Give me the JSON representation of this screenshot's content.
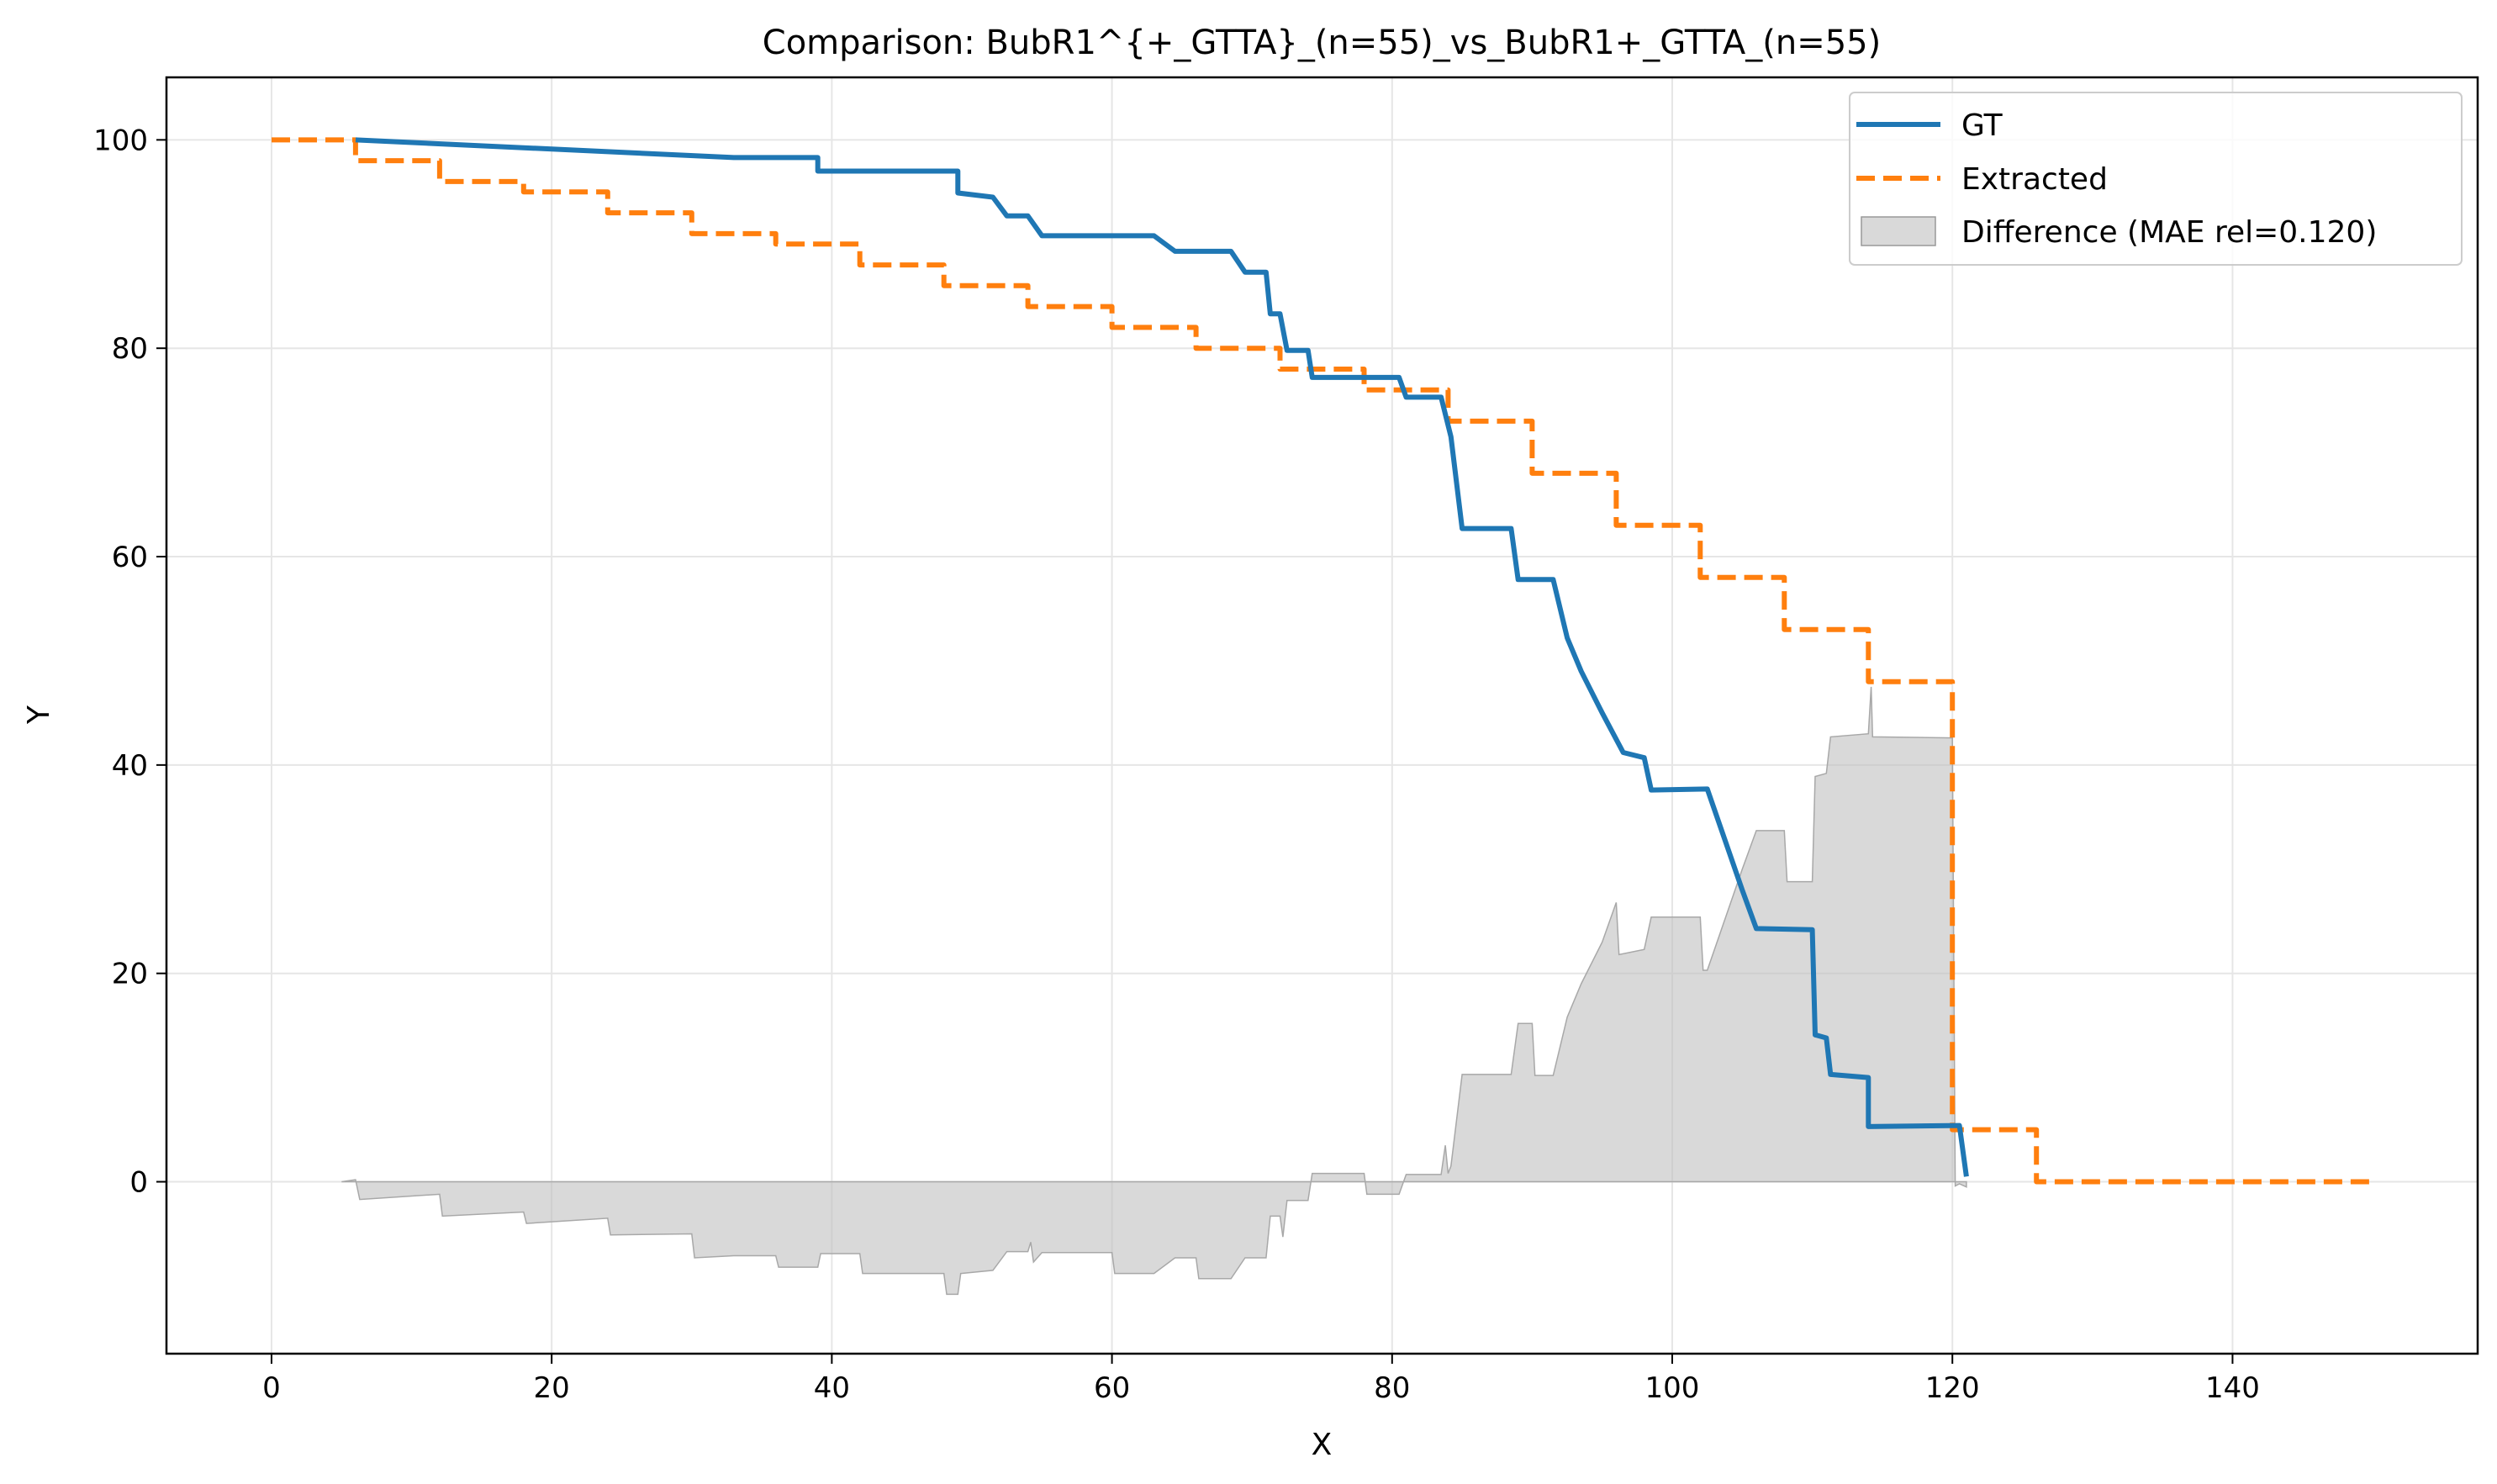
{
  "chart_data": {
    "type": "line",
    "title": "Comparison: BubR1^{+_GTTA}_(n=55)_vs_BubR1+_GTTA_(n=55)",
    "xlabel": "X",
    "ylabel": "Y",
    "xlim": [
      -7.5,
      157.5
    ],
    "ylim": [
      -16.5,
      106
    ],
    "xticks": [
      0,
      20,
      40,
      60,
      80,
      100,
      120,
      140
    ],
    "yticks": [
      0,
      20,
      40,
      60,
      80,
      100
    ],
    "grid": true,
    "legend_position": "top-right",
    "series": [
      {
        "name": "GT",
        "color": "#1f77b4",
        "style": "solid",
        "points": [
          [
            6,
            100
          ],
          [
            33,
            98.3
          ],
          [
            39,
            98.3
          ],
          [
            39,
            97
          ],
          [
            49,
            97
          ],
          [
            49,
            94.9
          ],
          [
            51.5,
            94.5
          ],
          [
            52.5,
            92.7
          ],
          [
            54,
            92.7
          ],
          [
            55,
            90.8
          ],
          [
            63,
            90.8
          ],
          [
            64.5,
            89.3
          ],
          [
            68.5,
            89.3
          ],
          [
            69.5,
            87.3
          ],
          [
            71,
            87.3
          ],
          [
            71.3,
            83.3
          ],
          [
            72,
            83.3
          ],
          [
            72.5,
            79.8
          ],
          [
            74,
            79.8
          ],
          [
            74.3,
            77.2
          ],
          [
            80.5,
            77.2
          ],
          [
            81,
            75.3
          ],
          [
            83.5,
            75.3
          ],
          [
            84.2,
            71.5
          ],
          [
            85,
            62.7
          ],
          [
            88.5,
            62.7
          ],
          [
            89,
            57.8
          ],
          [
            91.5,
            57.8
          ],
          [
            92.5,
            52.2
          ],
          [
            93.5,
            49
          ],
          [
            95,
            45
          ],
          [
            96.5,
            41.2
          ],
          [
            98,
            40.7
          ],
          [
            98.5,
            37.6
          ],
          [
            102.5,
            37.7
          ],
          [
            105,
            28
          ],
          [
            106,
            24.3
          ],
          [
            110,
            24.2
          ],
          [
            110.2,
            14.1
          ],
          [
            111,
            13.8
          ],
          [
            111.3,
            10.3
          ],
          [
            114,
            10
          ],
          [
            114,
            5.3
          ],
          [
            120.5,
            5.4
          ],
          [
            121,
            0.5
          ]
        ]
      },
      {
        "name": "Extracted",
        "color": "#ff7f0e",
        "style": "dashed",
        "points": [
          [
            0,
            100
          ],
          [
            6,
            100
          ],
          [
            6,
            98
          ],
          [
            12,
            98
          ],
          [
            12,
            96
          ],
          [
            18,
            96
          ],
          [
            18,
            95
          ],
          [
            24,
            95
          ],
          [
            24,
            93
          ],
          [
            30,
            93
          ],
          [
            30,
            91
          ],
          [
            36,
            91
          ],
          [
            36,
            90
          ],
          [
            42,
            90
          ],
          [
            42,
            88
          ],
          [
            48,
            88
          ],
          [
            48,
            86
          ],
          [
            54,
            86
          ],
          [
            54,
            84
          ],
          [
            60,
            84
          ],
          [
            60,
            82
          ],
          [
            66,
            82
          ],
          [
            66,
            80
          ],
          [
            72,
            80
          ],
          [
            72,
            78
          ],
          [
            78,
            78
          ],
          [
            78,
            76
          ],
          [
            84,
            76
          ],
          [
            84,
            73
          ],
          [
            90,
            73
          ],
          [
            90,
            68
          ],
          [
            96,
            68
          ],
          [
            96,
            63
          ],
          [
            102,
            63
          ],
          [
            102,
            58
          ],
          [
            108,
            58
          ],
          [
            108,
            53
          ],
          [
            114,
            53
          ],
          [
            114,
            48
          ],
          [
            120,
            48
          ],
          [
            120,
            5
          ],
          [
            126,
            5
          ],
          [
            126,
            0
          ],
          [
            150,
            0
          ]
        ]
      }
    ],
    "fill": {
      "name": "Difference (MAE rel=0.120)",
      "color": "#bfbfbf",
      "points": [
        [
          5,
          0
        ],
        [
          6,
          0.2
        ],
        [
          6.3,
          -1.7
        ],
        [
          12,
          -1.2
        ],
        [
          12.2,
          -3.3
        ],
        [
          18,
          -2.9
        ],
        [
          18.2,
          -4
        ],
        [
          24,
          -3.5
        ],
        [
          24.2,
          -5.1
        ],
        [
          30,
          -5
        ],
        [
          30.2,
          -7.3
        ],
        [
          33,
          -7.1
        ],
        [
          36,
          -7.1
        ],
        [
          36.2,
          -8.2
        ],
        [
          39,
          -8.2
        ],
        [
          39.2,
          -6.9
        ],
        [
          42,
          -6.9
        ],
        [
          42.2,
          -8.8
        ],
        [
          48,
          -8.8
        ],
        [
          48.2,
          -10.8
        ],
        [
          49,
          -10.8
        ],
        [
          49.2,
          -8.8
        ],
        [
          51.5,
          -8.5
        ],
        [
          52.5,
          -6.7
        ],
        [
          54,
          -6.7
        ],
        [
          54.2,
          -5.8
        ],
        [
          54.4,
          -7.7
        ],
        [
          55,
          -6.8
        ],
        [
          60,
          -6.8
        ],
        [
          60.2,
          -8.8
        ],
        [
          63,
          -8.8
        ],
        [
          64.5,
          -7.3
        ],
        [
          66,
          -7.3
        ],
        [
          66.2,
          -9.3
        ],
        [
          68.5,
          -9.3
        ],
        [
          69.5,
          -7.3
        ],
        [
          71,
          -7.3
        ],
        [
          71.3,
          -3.3
        ],
        [
          72,
          -3.3
        ],
        [
          72.2,
          -5.3
        ],
        [
          72.5,
          -1.8
        ],
        [
          74,
          -1.8
        ],
        [
          74.3,
          0.8
        ],
        [
          78,
          0.8
        ],
        [
          78.2,
          -1.2
        ],
        [
          80.5,
          -1.2
        ],
        [
          81,
          0.7
        ],
        [
          83.5,
          0.7
        ],
        [
          83.8,
          3.5
        ],
        [
          84,
          0.8
        ],
        [
          84.2,
          1.5
        ],
        [
          85,
          10.3
        ],
        [
          88.5,
          10.3
        ],
        [
          89,
          15.2
        ],
        [
          90,
          15.2
        ],
        [
          90.2,
          10.2
        ],
        [
          91.5,
          10.2
        ],
        [
          92.5,
          15.8
        ],
        [
          93.5,
          19
        ],
        [
          95,
          23
        ],
        [
          96,
          26.8
        ],
        [
          96.2,
          21.8
        ],
        [
          98,
          22.3
        ],
        [
          98.5,
          25.4
        ],
        [
          102,
          25.4
        ],
        [
          102.2,
          20.3
        ],
        [
          102.5,
          20.3
        ],
        [
          105,
          30
        ],
        [
          106,
          33.7
        ],
        [
          108,
          33.7
        ],
        [
          108.2,
          28.8
        ],
        [
          110,
          28.8
        ],
        [
          110.2,
          38.9
        ],
        [
          111,
          39.2
        ],
        [
          111.3,
          42.7
        ],
        [
          114,
          43
        ],
        [
          114.2,
          47.5
        ],
        [
          114.3,
          42.7
        ],
        [
          120,
          42.6
        ],
        [
          120.2,
          -0.4
        ],
        [
          120.5,
          -0.2
        ],
        [
          121,
          -0.5
        ],
        [
          121,
          0
        ],
        [
          5,
          0
        ]
      ]
    }
  }
}
